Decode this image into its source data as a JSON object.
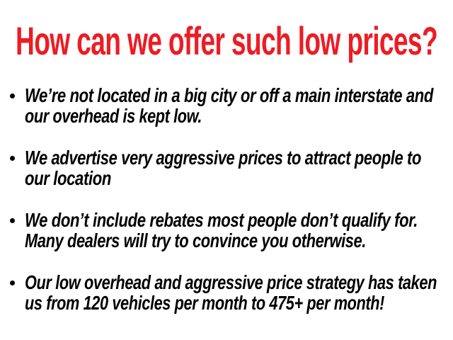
{
  "title": "How can we offer such low prices?",
  "colors": {
    "title": "#ed1c24",
    "text": "#000000"
  },
  "bullets": [
    {
      "lines": [
        "We’re not located in a big city or off a main interstate and",
        "our overhead is kept low."
      ]
    },
    {
      "lines": [
        "We advertise very aggressive prices to attract people to",
        "our location"
      ]
    },
    {
      "lines": [
        "We don’t include rebates most people don’t qualify for.",
        "Many dealers will try to convince you otherwise."
      ]
    },
    {
      "lines": [
        "Our low overhead and aggressive price strategy has taken",
        "us from 120 vehicles per month to 475+ per month!"
      ]
    }
  ]
}
